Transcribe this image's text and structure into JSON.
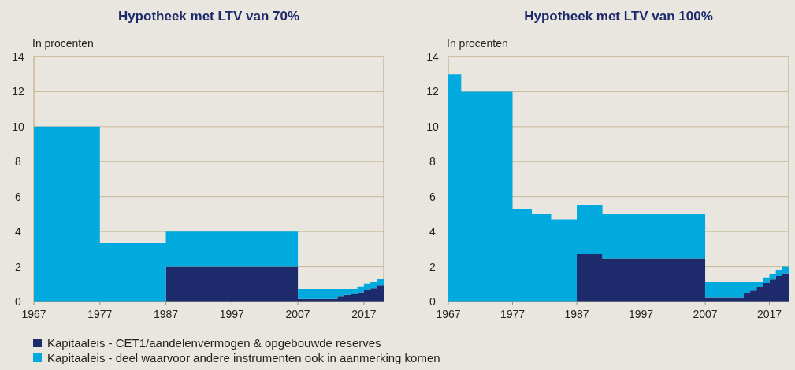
{
  "chart_data": [
    {
      "type": "area",
      "stacked": true,
      "title": "Hypotheek met LTV van 70%",
      "ylabel": "In procenten",
      "x": [
        1967,
        1977,
        1977,
        1987,
        1987,
        2007,
        2007,
        2013,
        2013,
        2014,
        2014,
        2015,
        2015,
        2016,
        2016,
        2017,
        2017,
        2018,
        2018,
        2019,
        2019,
        2020
      ],
      "series": [
        {
          "name": "Kapitaaleis - CET1/aandelenvermogen & opgebouwde reserves",
          "color": "#1d2a6b",
          "values": [
            0,
            0,
            0,
            0,
            2,
            2,
            0.15,
            0.15,
            0.3,
            0.3,
            0.37,
            0.37,
            0.45,
            0.45,
            0.52,
            0.52,
            0.67,
            0.67,
            0.75,
            0.75,
            0.93,
            0.93
          ]
        },
        {
          "name": "Kapitaaleis - deel waarvoor andere instrumenten ook in aanmerking komen",
          "color": "#00a9de",
          "values": [
            10,
            10,
            3.33,
            3.33,
            2,
            2,
            0.57,
            0.57,
            0.42,
            0.42,
            0.35,
            0.35,
            0.27,
            0.27,
            0.35,
            0.35,
            0.33,
            0.33,
            0.38,
            0.38,
            0.35,
            0.35
          ]
        }
      ],
      "xlim": [
        1967,
        2020
      ],
      "xticks": [
        1967,
        1977,
        1987,
        1997,
        2007,
        2017
      ],
      "ylim": [
        0,
        14
      ],
      "yticks": [
        0,
        2,
        4,
        6,
        8,
        10,
        12,
        14
      ],
      "grid": "y",
      "legend": "bottom"
    },
    {
      "type": "area",
      "stacked": true,
      "title": "Hypotheek met LTV van 100%",
      "ylabel": "In procenten",
      "x": [
        1967,
        1969,
        1969,
        1977,
        1977,
        1980,
        1980,
        1983,
        1983,
        1987,
        1987,
        1991,
        1991,
        2007,
        2007,
        2013,
        2013,
        2014,
        2014,
        2015,
        2015,
        2016,
        2016,
        2017,
        2017,
        2018,
        2018,
        2019,
        2019,
        2020
      ],
      "series": [
        {
          "color": "#1d2a6b",
          "values": [
            0,
            0,
            0,
            0,
            0,
            0,
            0,
            0,
            0,
            0,
            2.7,
            2.7,
            2.45,
            2.45,
            0.25,
            0.25,
            0.49,
            0.49,
            0.62,
            0.62,
            0.84,
            0.84,
            1.06,
            1.06,
            1.25,
            1.25,
            1.47,
            1.47,
            1.6,
            1.6
          ]
        },
        {
          "color": "#00a9de",
          "values": [
            13,
            13,
            12,
            12,
            5.3,
            5.3,
            5,
            5,
            4.7,
            4.7,
            2.8,
            2.8,
            2.55,
            2.55,
            0.88,
            0.88,
            0.64,
            0.64,
            0.51,
            0.51,
            0.29,
            0.29,
            0.3,
            0.3,
            0.33,
            0.33,
            0.33,
            0.33,
            0.4,
            0.4
          ]
        }
      ],
      "xlim": [
        1967,
        2020
      ],
      "xticks": [
        1967,
        1977,
        1987,
        1997,
        2007,
        2017
      ],
      "ylim": [
        0,
        14
      ],
      "yticks": [
        0,
        2,
        4,
        6,
        8,
        10,
        12,
        14
      ],
      "grid": "y"
    }
  ]
}
